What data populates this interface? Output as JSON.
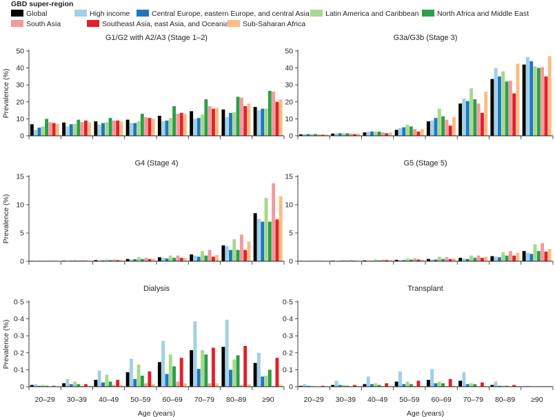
{
  "legend": {
    "title": "GBD super-region",
    "items": [
      {
        "label": "Global",
        "color": "#000000"
      },
      {
        "label": "High income",
        "color": "#9fd1e6"
      },
      {
        "label": "Central Europe, eastern Europe, and central Asia",
        "color": "#1f77c2"
      },
      {
        "label": "Latin America and Caribbean",
        "color": "#a6d98c"
      },
      {
        "label": "North Africa and Middle East",
        "color": "#2e9e48"
      },
      {
        "label": "South Asia",
        "color": "#f29a9c"
      },
      {
        "label": "Southeast Asia, east Asia, and Oceania",
        "color": "#e3202a"
      },
      {
        "label": "Sub-Saharan Africa",
        "color": "#f9bd84"
      }
    ]
  },
  "chart_data": [
    {
      "type": "bar",
      "title": "G1/G2 with A2/A3 (Stage 1–2)",
      "xlabel": "",
      "ylabel": "Prevalence (%)",
      "ylim": [
        0,
        50
      ],
      "yticks": [
        "0",
        "10",
        "20",
        "30",
        "40",
        "50"
      ],
      "categories": [
        "20–29",
        "30–39",
        "40–49",
        "50–59",
        "60–69",
        "70–79",
        "80–89",
        "≥90"
      ],
      "series": [
        {
          "name": "Global",
          "values": [
            6.8,
            7.8,
            8.5,
            9.5,
            11.8,
            14.5,
            15.5,
            17
          ]
        },
        {
          "name": "High income",
          "values": [
            3.5,
            5.5,
            6.5,
            7.5,
            8.5,
            10,
            11,
            15
          ]
        },
        {
          "name": "Central Europe, eastern Europe, and central Asia",
          "values": [
            4.8,
            6.8,
            7.5,
            7.5,
            9,
            10.5,
            13.5,
            16
          ]
        },
        {
          "name": "Latin America and Caribbean",
          "values": [
            5.5,
            7,
            8,
            8.5,
            10.5,
            12.5,
            14,
            16
          ]
        },
        {
          "name": "North Africa and Middle East",
          "values": [
            10,
            9.5,
            10.5,
            13,
            17.5,
            21.5,
            23,
            26.5
          ]
        },
        {
          "name": "South Asia",
          "values": [
            8,
            8,
            9,
            11,
            13,
            17.5,
            22.5,
            26
          ]
        },
        {
          "name": "Southeast Asia, east Asia, and Oceania",
          "values": [
            7.5,
            9,
            9,
            10.5,
            13.5,
            16,
            17.5,
            20
          ]
        },
        {
          "name": "Sub-Saharan Africa",
          "values": [
            7,
            8,
            8.5,
            10,
            13,
            16.5,
            19,
            21.5
          ]
        }
      ]
    },
    {
      "type": "bar",
      "title": "G3a/G3b (Stage 3)",
      "xlabel": "",
      "ylabel": "",
      "ylim": [
        0,
        50
      ],
      "yticks": [
        "0",
        "10",
        "20",
        "30",
        "40",
        "50"
      ],
      "categories": [
        "20–29",
        "30–39",
        "40–49",
        "50–59",
        "60–69",
        "70–79",
        "80–89",
        "≥90"
      ],
      "series": [
        {
          "name": "Global",
          "values": [
            0.8,
            1.3,
            2,
            3.5,
            8.5,
            19,
            33.5,
            42
          ]
        },
        {
          "name": "High income",
          "values": [
            1,
            1.5,
            2.5,
            4.5,
            9,
            22,
            40,
            46.5
          ]
        },
        {
          "name": "Central Europe, eastern Europe, and central Asia",
          "values": [
            1,
            1.5,
            2.5,
            5,
            10.5,
            20.5,
            35,
            44
          ]
        },
        {
          "name": "Latin America and Caribbean",
          "values": [
            1,
            1.5,
            2.5,
            6.5,
            16,
            28,
            38,
            41
          ]
        },
        {
          "name": "North Africa and Middle East",
          "values": [
            1,
            1.5,
            2.5,
            5.5,
            11.5,
            21.5,
            32,
            40
          ]
        },
        {
          "name": "South Asia",
          "values": [
            0.8,
            1.3,
            2,
            4,
            9.5,
            19,
            32.5,
            40.5
          ]
        },
        {
          "name": "Southeast Asia, east Asia, and Oceania",
          "values": [
            0.6,
            1,
            1.5,
            2.5,
            6,
            13.5,
            25,
            35
          ]
        },
        {
          "name": "Sub-Saharan Africa",
          "values": [
            0.8,
            1.3,
            2,
            4,
            11,
            26,
            42.5,
            47
          ]
        }
      ]
    },
    {
      "type": "bar",
      "title": "G4 (Stage 4)",
      "xlabel": "",
      "ylabel": "Prevalence (%)",
      "ylim": [
        0,
        15
      ],
      "yticks": [
        "0",
        "5",
        "10",
        "15"
      ],
      "categories": [
        "20–29",
        "30–39",
        "40–49",
        "50–59",
        "60–69",
        "70–79",
        "80–89",
        "≥90"
      ],
      "series": [
        {
          "name": "Global",
          "values": [
            0.05,
            0.1,
            0.2,
            0.4,
            0.7,
            1.2,
            2.8,
            8.5
          ]
        },
        {
          "name": "High income",
          "values": [
            0.05,
            0.1,
            0.15,
            0.3,
            0.6,
            1,
            2.7,
            7.5
          ]
        },
        {
          "name": "Central Europe, eastern Europe, and central Asia",
          "values": [
            0.05,
            0.1,
            0.15,
            0.35,
            0.5,
            0.8,
            2,
            7
          ]
        },
        {
          "name": "Latin America and Caribbean",
          "values": [
            0.1,
            0.2,
            0.3,
            0.7,
            1,
            1.8,
            3.9,
            11.2
          ]
        },
        {
          "name": "North Africa and Middle East",
          "values": [
            0.05,
            0.1,
            0.2,
            0.4,
            0.6,
            1,
            2,
            7
          ]
        },
        {
          "name": "South Asia",
          "values": [
            0.1,
            0.2,
            0.3,
            0.6,
            1,
            2,
            4.7,
            13.8
          ]
        },
        {
          "name": "Southeast Asia, east Asia, and Oceania",
          "values": [
            0.05,
            0.1,
            0.2,
            0.4,
            0.6,
            0.8,
            2,
            7.4
          ]
        },
        {
          "name": "Sub-Saharan Africa",
          "values": [
            0.05,
            0.1,
            0.2,
            0.4,
            0.6,
            1.1,
            3.5,
            11.5
          ]
        }
      ]
    },
    {
      "type": "bar",
      "title": "G5 (Stage 5)",
      "xlabel": "",
      "ylabel": "",
      "ylim": [
        0,
        15
      ],
      "yticks": [
        "0",
        "5",
        "10",
        "15"
      ],
      "categories": [
        "20–29",
        "30–39",
        "40–49",
        "50–59",
        "60–69",
        "70–79",
        "80–89",
        "≥90"
      ],
      "series": [
        {
          "name": "Global",
          "values": [
            0.05,
            0.1,
            0.15,
            0.25,
            0.4,
            0.6,
            0.9,
            1.8
          ]
        },
        {
          "name": "High income",
          "values": [
            0.05,
            0.1,
            0.1,
            0.2,
            0.3,
            0.5,
            0.8,
            1.5
          ]
        },
        {
          "name": "Central Europe, eastern Europe, and central Asia",
          "values": [
            0.05,
            0.1,
            0.1,
            0.2,
            0.3,
            0.4,
            0.7,
            1.3
          ]
        },
        {
          "name": "Latin America and Caribbean",
          "values": [
            0.1,
            0.2,
            0.3,
            0.5,
            0.8,
            1,
            1.6,
            3
          ]
        },
        {
          "name": "North Africa and Middle East",
          "values": [
            0.05,
            0.1,
            0.15,
            0.3,
            0.4,
            0.6,
            1,
            1.8
          ]
        },
        {
          "name": "South Asia",
          "values": [
            0.1,
            0.2,
            0.3,
            0.5,
            0.7,
            1,
            1.8,
            3.2
          ]
        },
        {
          "name": "Southeast Asia, east Asia, and Oceania",
          "values": [
            0.05,
            0.1,
            0.2,
            0.3,
            0.4,
            0.6,
            1,
            1.7
          ]
        },
        {
          "name": "Sub-Saharan Africa",
          "values": [
            0.05,
            0.1,
            0.2,
            0.3,
            0.5,
            0.8,
            1.5,
            2.2
          ]
        }
      ]
    },
    {
      "type": "bar",
      "title": "Dialysis",
      "xlabel": "Age (years)",
      "ylabel": "Prevalence (%)",
      "ylim": [
        0,
        0.5
      ],
      "yticks": [
        "0",
        "0·1",
        "0·2",
        "0·3",
        "0·4",
        "0·5"
      ],
      "categories": [
        "20–29",
        "30–39",
        "40–49",
        "50–59",
        "60–69",
        "70–79",
        "80–89",
        "≥90"
      ],
      "series": [
        {
          "name": "Global",
          "values": [
            0.01,
            0.02,
            0.04,
            0.085,
            0.145,
            0.215,
            0.235,
            0.14
          ]
        },
        {
          "name": "High income",
          "values": [
            0.015,
            0.045,
            0.095,
            0.165,
            0.27,
            0.385,
            0.395,
            0.2
          ]
        },
        {
          "name": "Central Europe, eastern Europe, and central Asia",
          "values": [
            0.005,
            0.015,
            0.025,
            0.045,
            0.075,
            0.105,
            0.1,
            0.06
          ]
        },
        {
          "name": "Latin America and Caribbean",
          "values": [
            0.01,
            0.03,
            0.07,
            0.13,
            0.19,
            0.215,
            0.16,
            0.065
          ]
        },
        {
          "name": "North Africa and Middle East",
          "values": [
            0.005,
            0.015,
            0.03,
            0.065,
            0.12,
            0.19,
            0.185,
            0.1
          ]
        },
        {
          "name": "South Asia",
          "values": [
            0.002,
            0.005,
            0.01,
            0.02,
            0.03,
            0.02,
            0.01,
            0.005
          ]
        },
        {
          "name": "Southeast Asia, east Asia, and Oceania",
          "values": [
            0.005,
            0.015,
            0.04,
            0.09,
            0.17,
            0.23,
            0.24,
            0.17
          ]
        },
        {
          "name": "Sub-Saharan Africa",
          "values": [
            0.002,
            0.004,
            0.008,
            0.015,
            0.02,
            0.02,
            0.015,
            0.01
          ]
        }
      ]
    },
    {
      "type": "bar",
      "title": "Transplant",
      "xlabel": "Age (years)",
      "ylabel": "",
      "ylim": [
        0,
        0.5
      ],
      "yticks": [
        "0",
        "0·1",
        "0·2",
        "0·3",
        "0·4",
        "0·5"
      ],
      "categories": [
        "20–29",
        "30–39",
        "40–49",
        "50–59",
        "60–69",
        "70–79",
        "80–89",
        "≥90"
      ],
      "series": [
        {
          "name": "Global",
          "values": [
            0.005,
            0.01,
            0.015,
            0.03,
            0.04,
            0.035,
            0.01,
            0.002
          ]
        },
        {
          "name": "High income",
          "values": [
            0.015,
            0.035,
            0.06,
            0.09,
            0.105,
            0.085,
            0.03,
            0.005
          ]
        },
        {
          "name": "Central Europe, eastern Europe, and central Asia",
          "values": [
            0.005,
            0.01,
            0.015,
            0.015,
            0.02,
            0.015,
            0.005,
            0.001
          ]
        },
        {
          "name": "Latin America and Caribbean",
          "values": [
            0.005,
            0.01,
            0.02,
            0.03,
            0.03,
            0.02,
            0.005,
            0.001
          ]
        },
        {
          "name": "North Africa and Middle East",
          "values": [
            0.002,
            0.005,
            0.01,
            0.015,
            0.02,
            0.015,
            0.005,
            0.001
          ]
        },
        {
          "name": "South Asia",
          "values": [
            0.001,
            0.002,
            0.003,
            0.003,
            0.003,
            0.002,
            0.001,
            0.001
          ]
        },
        {
          "name": "Southeast Asia, east Asia, and Oceania",
          "values": [
            0.005,
            0.01,
            0.02,
            0.035,
            0.045,
            0.025,
            0.01,
            0.002
          ]
        },
        {
          "name": "Sub-Saharan Africa",
          "values": [
            0.001,
            0.002,
            0.003,
            0.004,
            0.004,
            0.003,
            0.001,
            0.001
          ]
        }
      ]
    }
  ]
}
